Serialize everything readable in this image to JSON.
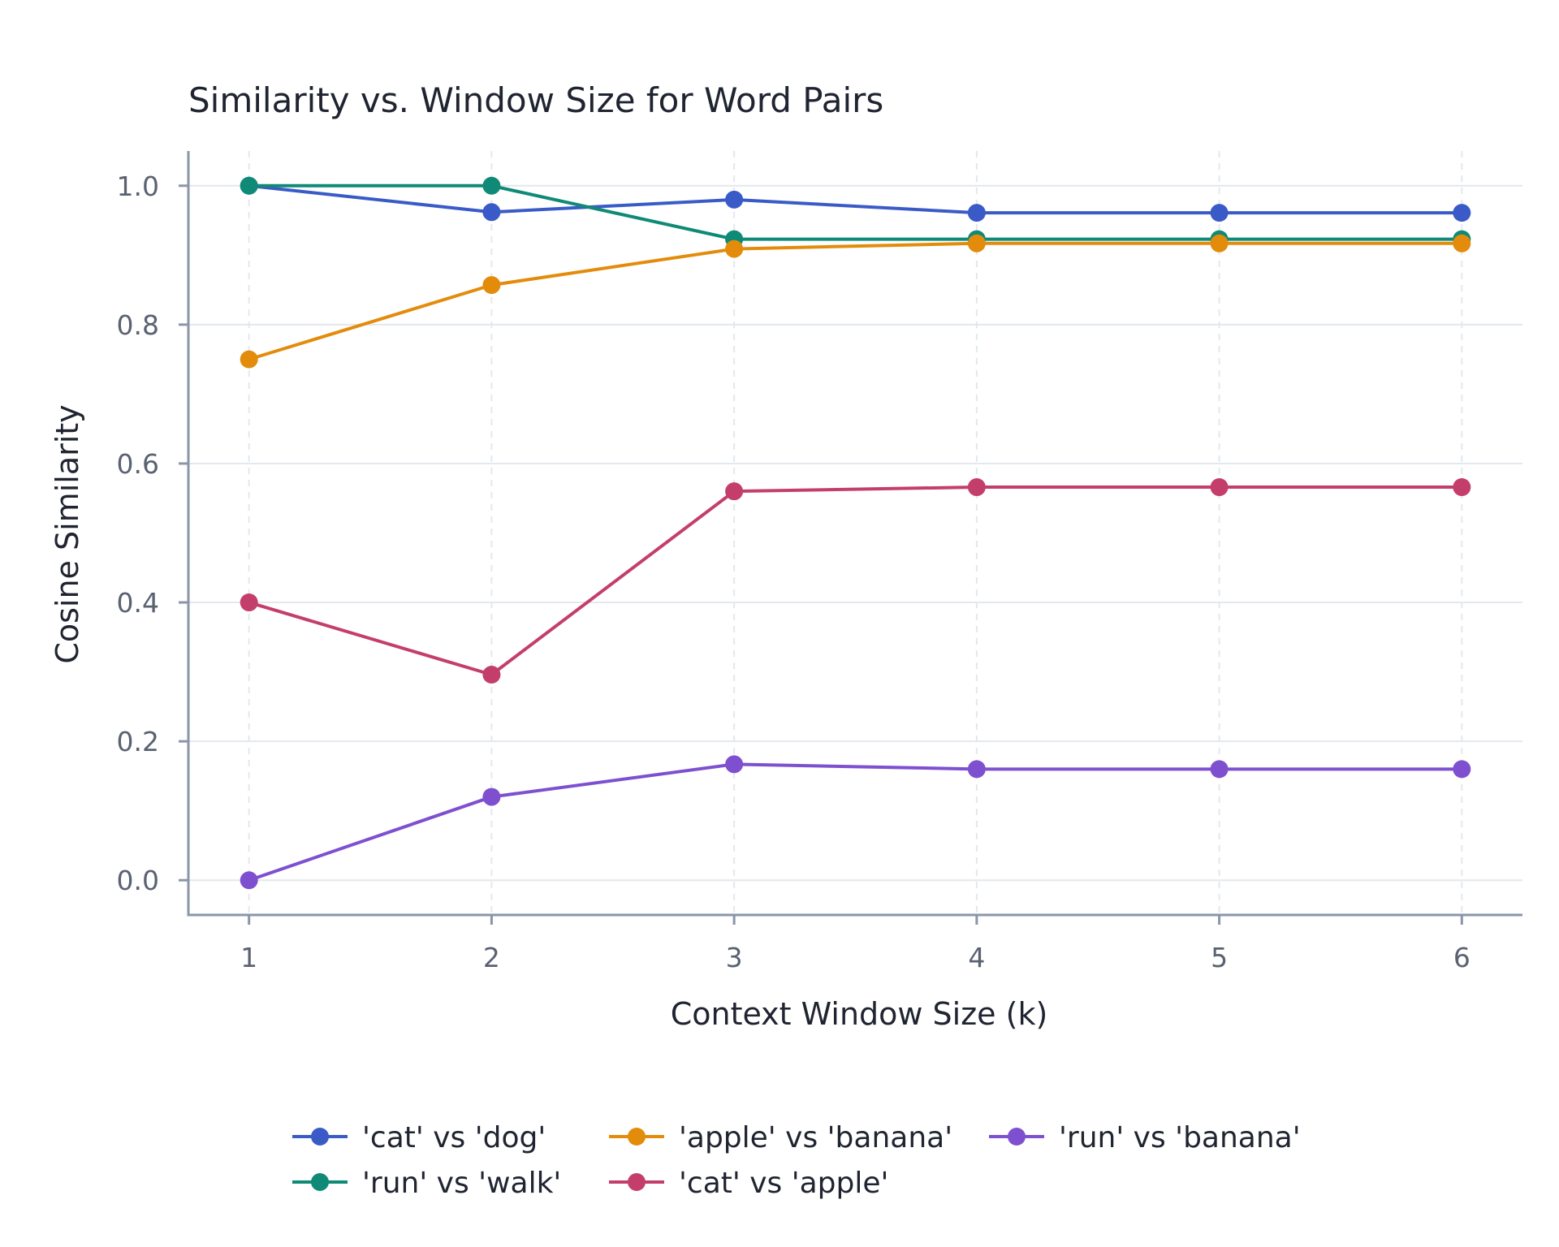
{
  "chart_data": {
    "type": "line",
    "title": "Similarity vs. Window Size for Word Pairs",
    "xlabel": "Context Window Size (k)",
    "ylabel": "Cosine Similarity",
    "x": [
      1,
      2,
      3,
      4,
      5,
      6
    ],
    "xticks": [
      "1",
      "2",
      "3",
      "4",
      "5",
      "6"
    ],
    "yticks": [
      "0.0",
      "0.2",
      "0.4",
      "0.6",
      "0.8",
      "1.0"
    ],
    "xlim": [
      0.75,
      6.25
    ],
    "ylim": [
      -0.05,
      1.05
    ],
    "grid": true,
    "legend_position": "bottom",
    "series": [
      {
        "name": "'cat' vs 'dog'",
        "color": "#3a5bc7",
        "values": [
          1.0,
          0.962,
          0.98,
          0.961,
          0.961,
          0.961
        ]
      },
      {
        "name": "'run' vs 'walk'",
        "color": "#0f8a76",
        "values": [
          1.0,
          1.0,
          0.923,
          0.923,
          0.923,
          0.923
        ]
      },
      {
        "name": "'apple' vs 'banana'",
        "color": "#e38c0c",
        "values": [
          0.75,
          0.857,
          0.909,
          0.917,
          0.917,
          0.917
        ]
      },
      {
        "name": "'cat' vs 'apple'",
        "color": "#c43e6c",
        "values": [
          0.4,
          0.296,
          0.56,
          0.566,
          0.566,
          0.566
        ]
      },
      {
        "name": "'run' vs 'banana'",
        "color": "#7e50d0",
        "values": [
          0.0,
          0.12,
          0.167,
          0.16,
          0.16,
          0.16
        ]
      }
    ]
  }
}
